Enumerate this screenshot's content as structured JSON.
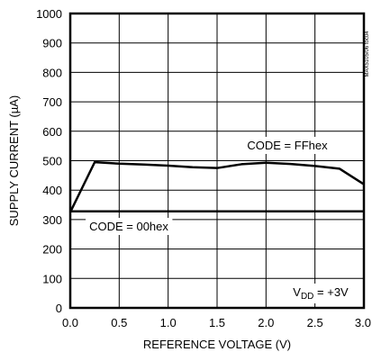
{
  "chart_data": {
    "type": "line",
    "title": "",
    "xlabel": "REFERENCE VOLTAGE (V)",
    "ylabel": "SUPPLY CURRENT (µA)",
    "xlim": [
      0,
      3
    ],
    "ylim": [
      0,
      1000
    ],
    "grid": true,
    "x_ticks": [
      "0.0",
      "0.5",
      "1.0",
      "1.5",
      "2.0",
      "2.5",
      "3.0"
    ],
    "y_ticks": [
      "0",
      "100",
      "200",
      "300",
      "400",
      "500",
      "600",
      "700",
      "800",
      "900",
      "1000"
    ],
    "series": [
      {
        "name": "CODE = FFhex",
        "x": [
          0,
          0.25,
          0.5,
          0.75,
          1.0,
          1.25,
          1.5,
          1.75,
          2.0,
          2.25,
          2.5,
          2.75,
          3.0
        ],
        "y": [
          325,
          495,
          490,
          487,
          483,
          478,
          475,
          488,
          493,
          489,
          482,
          473,
          420
        ]
      },
      {
        "name": "CODE = 00hex",
        "x": [
          0,
          3.0
        ],
        "y": [
          328,
          328
        ]
      }
    ],
    "annotations": {
      "vdd_main": "V",
      "vdd_sub": "DD",
      "vdd_rest": " = +3V"
    },
    "figure_tag": "MAX5105/06 toc04"
  }
}
